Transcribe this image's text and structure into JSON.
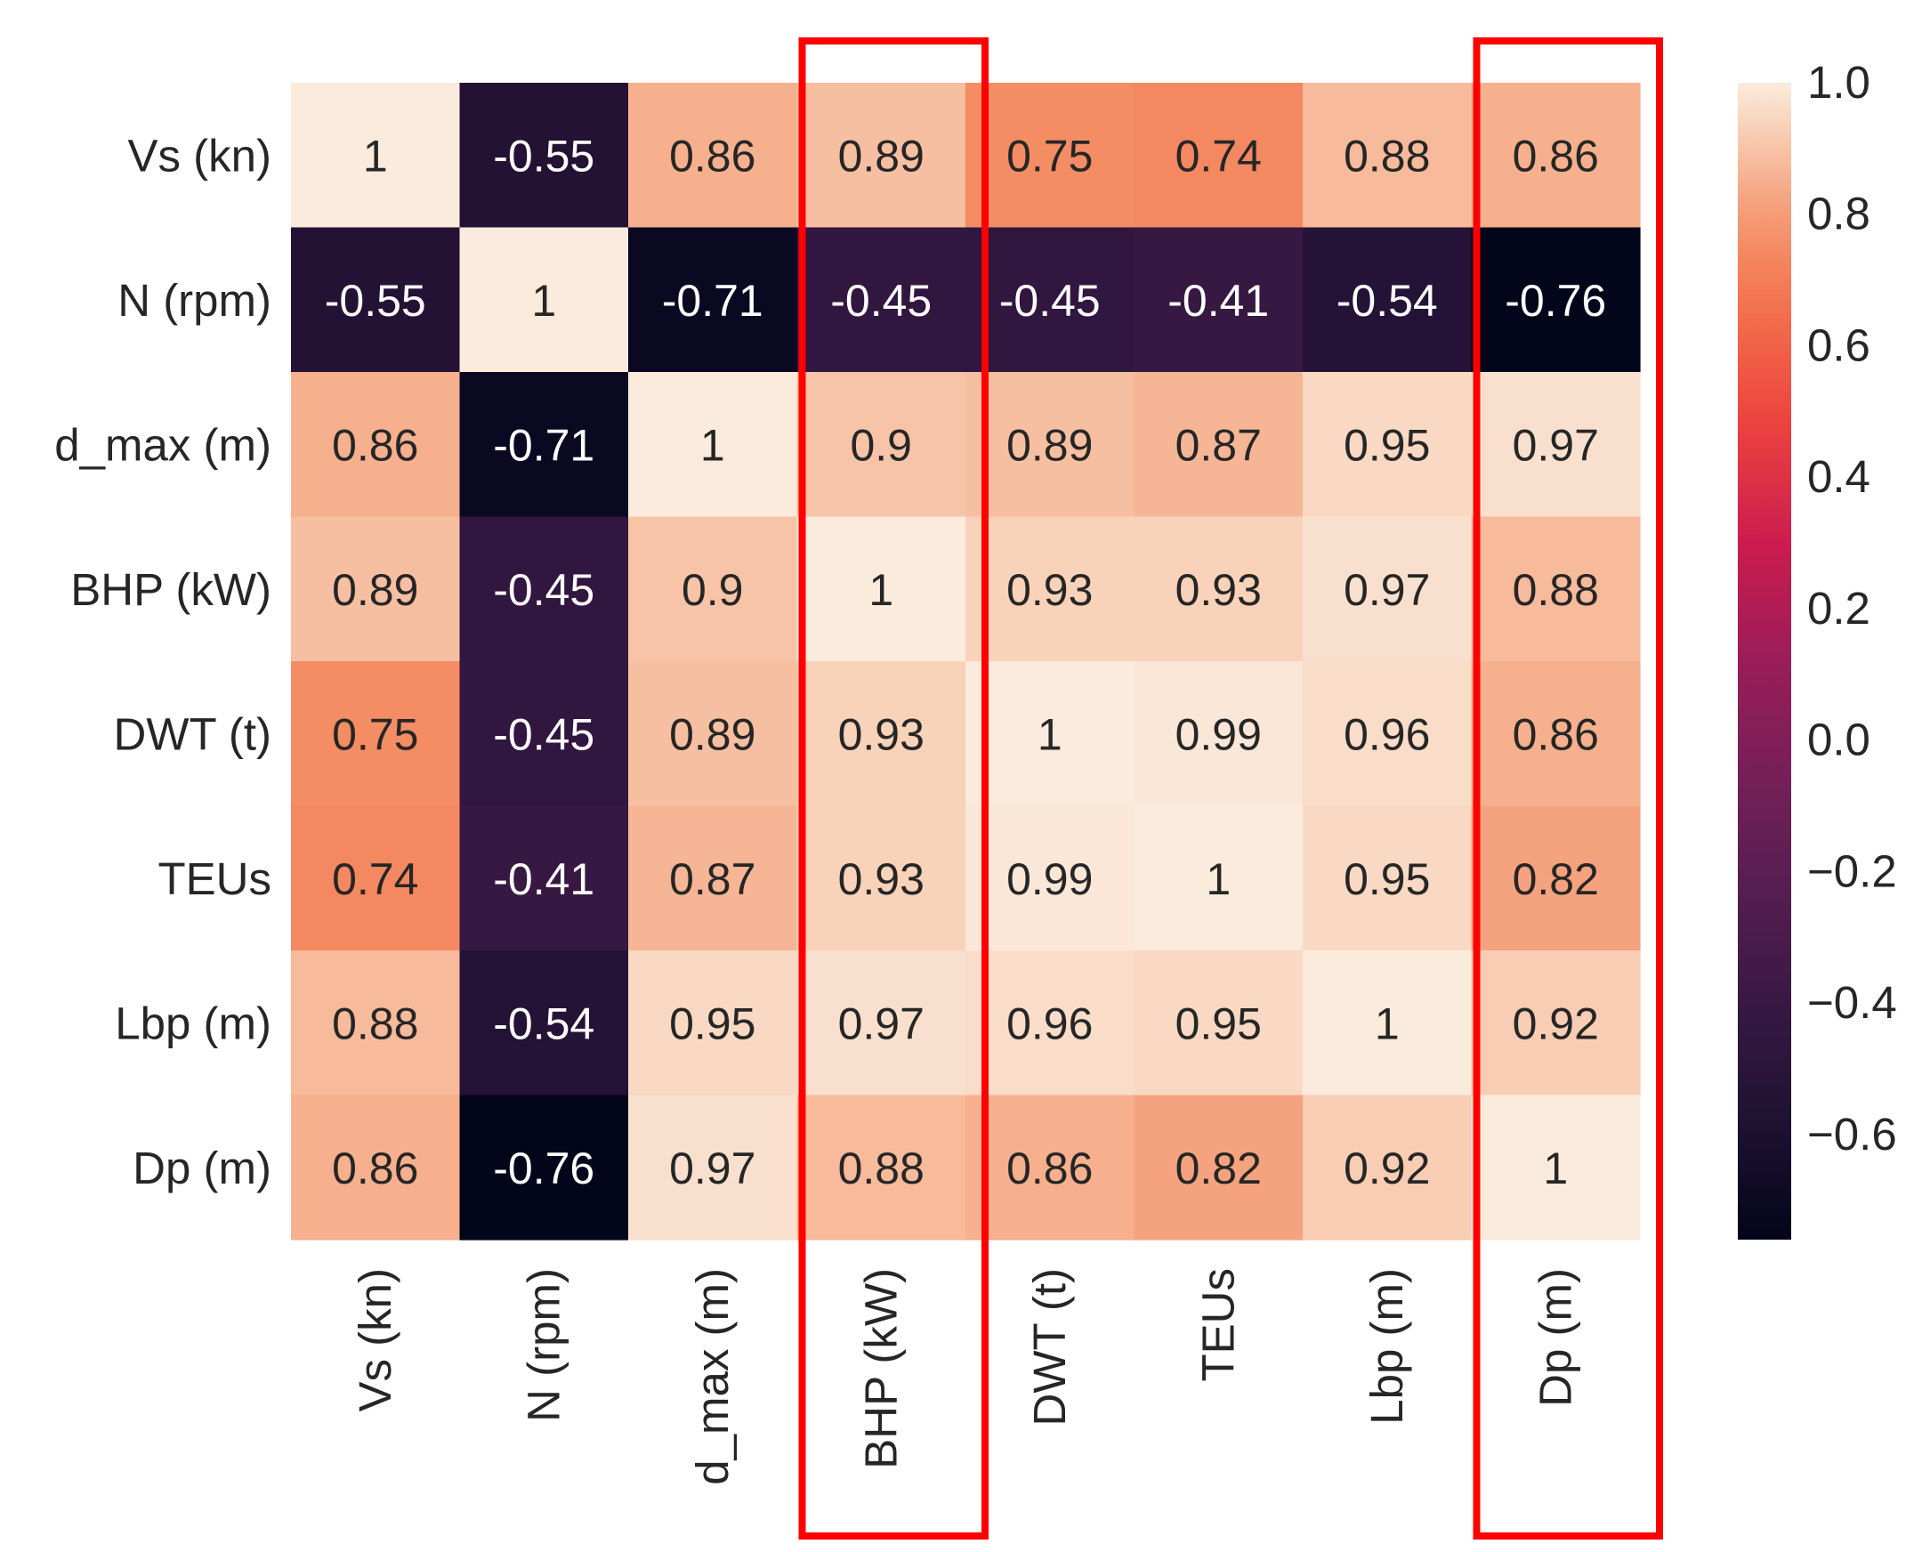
{
  "chart_data": {
    "type": "heatmap",
    "title": "",
    "row_labels": [
      "Vs (kn)",
      "N (rpm)",
      "d_max (m)",
      "BHP (kW)",
      "DWT (t)",
      "TEUs",
      "Lbp (m)",
      "Dp (m)"
    ],
    "col_labels": [
      "Vs (kn)",
      "N (rpm)",
      "d_max (m)",
      "BHP (kW)",
      "DWT (t)",
      "TEUs",
      "Lbp (m)",
      "Dp (m)"
    ],
    "cell_text": [
      [
        "1",
        "-0.55",
        "0.86",
        "0.89",
        "0.75",
        "0.74",
        "0.88",
        "0.86"
      ],
      [
        "-0.55",
        "1",
        "-0.71",
        "-0.45",
        "-0.45",
        "-0.41",
        "-0.54",
        "-0.76"
      ],
      [
        "0.86",
        "-0.71",
        "1",
        "0.9",
        "0.89",
        "0.87",
        "0.95",
        "0.97"
      ],
      [
        "0.89",
        "-0.45",
        "0.9",
        "1",
        "0.93",
        "0.93",
        "0.97",
        "0.88"
      ],
      [
        "0.75",
        "-0.45",
        "0.89",
        "0.93",
        "1",
        "0.99",
        "0.96",
        "0.86"
      ],
      [
        "0.74",
        "-0.41",
        "0.87",
        "0.93",
        "0.99",
        "1",
        "0.95",
        "0.82"
      ],
      [
        "0.88",
        "-0.54",
        "0.95",
        "0.97",
        "0.96",
        "0.95",
        "1",
        "0.92"
      ],
      [
        "0.86",
        "-0.76",
        "0.97",
        "0.88",
        "0.86",
        "0.82",
        "0.92",
        "1"
      ]
    ],
    "values": [
      [
        1,
        -0.55,
        0.86,
        0.89,
        0.75,
        0.74,
        0.88,
        0.86
      ],
      [
        -0.55,
        1,
        -0.71,
        -0.45,
        -0.45,
        -0.41,
        -0.54,
        -0.76
      ],
      [
        0.86,
        -0.71,
        1,
        0.9,
        0.89,
        0.87,
        0.95,
        0.97
      ],
      [
        0.89,
        -0.45,
        0.9,
        1,
        0.93,
        0.93,
        0.97,
        0.88
      ],
      [
        0.75,
        -0.45,
        0.89,
        0.93,
        1,
        0.99,
        0.96,
        0.86
      ],
      [
        0.74,
        -0.41,
        0.87,
        0.93,
        0.99,
        1,
        0.95,
        0.82
      ],
      [
        0.88,
        -0.54,
        0.95,
        0.97,
        0.96,
        0.95,
        1,
        0.92
      ],
      [
        0.86,
        -0.76,
        0.97,
        0.88,
        0.86,
        0.82,
        0.92,
        1
      ]
    ],
    "colorbar": {
      "range": [
        -0.76,
        1.0
      ],
      "ticks": [
        1.0,
        0.8,
        0.6,
        0.4,
        0.2,
        0.0,
        -0.2,
        -0.4,
        -0.6
      ],
      "tick_labels": [
        "1.0",
        "0.8",
        "0.6",
        "0.4",
        "0.2",
        "0.0",
        "−0.2",
        "−0.4",
        "−0.6"
      ],
      "colormap": "rocket",
      "position": "right"
    },
    "annotations": [
      {
        "type": "highlight-box",
        "target_column": "BHP (kW)",
        "color": "#ff0000"
      },
      {
        "type": "highlight-box",
        "target_column": "Dp (m)",
        "color": "#ff0000"
      }
    ]
  }
}
